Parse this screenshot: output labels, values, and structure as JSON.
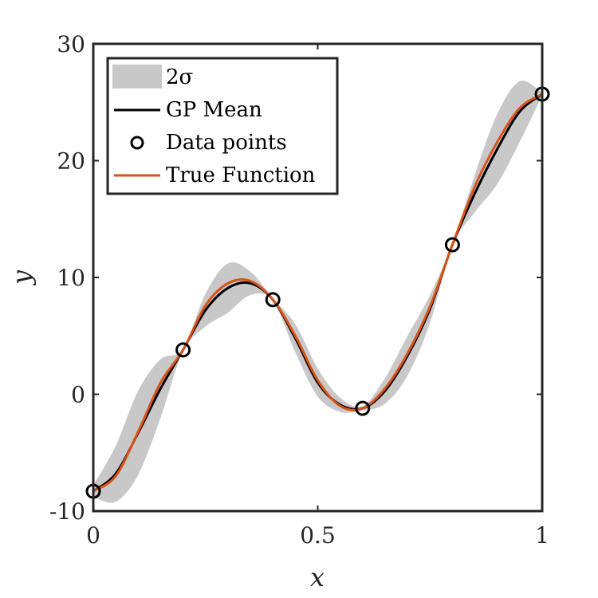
{
  "chart_data": {
    "type": "line",
    "title": "",
    "xlabel": "x",
    "ylabel": "y",
    "xlim": [
      0,
      1
    ],
    "ylim": [
      -10,
      30
    ],
    "xticks": [
      0,
      0.5,
      1
    ],
    "xtick_labels": [
      "0",
      "0.5",
      "1"
    ],
    "yticks": [
      -10,
      0,
      10,
      20,
      30
    ],
    "ytick_labels": [
      "-10",
      "0",
      "10",
      "20",
      "30"
    ],
    "grid": false,
    "legend_position": "top-left",
    "legend": [
      {
        "label": "2σ",
        "kind": "band",
        "color": "#c8c8c8"
      },
      {
        "label": "GP Mean",
        "kind": "line",
        "color": "#000000"
      },
      {
        "label": "Data points",
        "kind": "marker",
        "color": "#000000"
      },
      {
        "label": "True Function",
        "kind": "line",
        "color": "#d95319"
      }
    ],
    "data_points": {
      "name": "Data points",
      "x": [
        0,
        0.2,
        0.4,
        0.6,
        0.8,
        1.0
      ],
      "y": [
        -8.3,
        3.8,
        8.1,
        -1.2,
        12.8,
        25.7
      ]
    },
    "series": [
      {
        "name": "True Function",
        "color": "#d95319",
        "x": [
          0,
          0.05,
          0.1,
          0.15,
          0.2,
          0.25,
          0.3,
          0.35,
          0.4,
          0.45,
          0.5,
          0.55,
          0.6,
          0.65,
          0.7,
          0.75,
          0.8,
          0.85,
          0.9,
          0.95,
          1.0
        ],
        "y": [
          -8.3,
          -7.0,
          -3.2,
          1.0,
          3.8,
          7.6,
          9.5,
          9.7,
          8.1,
          5.0,
          1.2,
          -1.0,
          -1.2,
          0.5,
          3.5,
          7.5,
          12.8,
          17.8,
          21.6,
          24.5,
          25.7
        ]
      },
      {
        "name": "GP Mean",
        "color": "#000000",
        "x": [
          0,
          0.05,
          0.1,
          0.15,
          0.2,
          0.25,
          0.3,
          0.35,
          0.4,
          0.45,
          0.5,
          0.55,
          0.6,
          0.65,
          0.7,
          0.75,
          0.8,
          0.85,
          0.9,
          0.95,
          1.0
        ],
        "y": [
          -8.3,
          -6.8,
          -3.3,
          0.5,
          3.8,
          7.2,
          9.1,
          9.5,
          8.1,
          4.8,
          1.0,
          -0.9,
          -1.2,
          0.3,
          3.3,
          7.3,
          12.8,
          17.2,
          21.0,
          24.2,
          25.7
        ]
      },
      {
        "name": "2σ",
        "color": "#c8c8c8",
        "x": [
          0,
          0.05,
          0.1,
          0.15,
          0.2,
          0.25,
          0.3,
          0.35,
          0.4,
          0.45,
          0.5,
          0.55,
          0.6,
          0.65,
          0.7,
          0.75,
          0.8,
          0.85,
          0.9,
          0.95,
          1.0
        ],
        "upper": [
          -7.8,
          -4.4,
          0.3,
          3.0,
          3.9,
          8.6,
          11.2,
          10.5,
          8.2,
          6.0,
          2.2,
          -0.3,
          -1.0,
          1.4,
          5.0,
          8.5,
          12.9,
          18.8,
          24.0,
          26.8,
          25.8
        ],
        "lower": [
          -8.8,
          -9.2,
          -6.9,
          -2.0,
          3.7,
          5.8,
          7.0,
          8.5,
          8.0,
          3.6,
          -0.2,
          -1.5,
          -1.4,
          -0.8,
          1.6,
          6.1,
          12.7,
          15.6,
          18.0,
          21.6,
          25.6
        ]
      }
    ]
  }
}
